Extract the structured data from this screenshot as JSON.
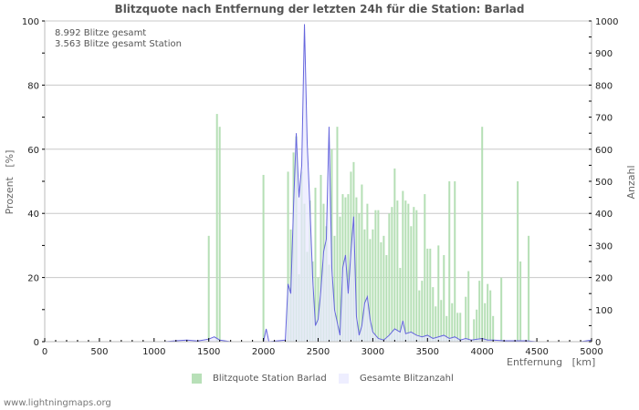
{
  "header": {
    "title": "Blitzquote nach Entfernung der letzten 24h für die Station: Barlad"
  },
  "info": {
    "line1": "8.992 Blitze gesamt",
    "line2": "3.563 Blitze gesamt Station"
  },
  "legend": {
    "items": [
      {
        "label": "Blitzquote Station Barlad",
        "color": "#b8e0b8"
      },
      {
        "label": "Gesamte Blitzanzahl",
        "color": "#eeeeff"
      }
    ]
  },
  "footer": {
    "text": "www.lightningmaps.org"
  },
  "colors": {
    "bar": "#b5dfb5",
    "line": "#6666dd",
    "line_fill": "#e8e8ff",
    "grid": "#c8c8c8",
    "axis": "#bbbbbb"
  },
  "chart_data": {
    "type": "bar",
    "title": "Blitzquote nach Entfernung der letzten 24h für die Station: Barlad",
    "xlabel": "Entfernung   [km]",
    "ylabel": "Prozent   [%]",
    "y2label": "Anzahl",
    "xlim": [
      0,
      5000
    ],
    "ylim": [
      0,
      100
    ],
    "y2lim": [
      0,
      1000
    ],
    "xticks": [
      0,
      500,
      1000,
      1500,
      2000,
      2500,
      3000,
      3500,
      4000,
      4500,
      5000
    ],
    "yticks": [
      0,
      20,
      40,
      60,
      80,
      100
    ],
    "y2ticks": [
      0,
      100,
      200,
      300,
      400,
      500,
      600,
      700,
      800,
      900,
      1000
    ],
    "grid": true,
    "legend_position": "bottom",
    "bin_width_km": 25,
    "series": [
      {
        "name": "Blitzquote Station Barlad",
        "axis": "left",
        "type": "bar",
        "x": [
          1500,
          1575,
          1600,
          2000,
          2225,
          2250,
          2275,
          2300,
          2325,
          2350,
          2375,
          2400,
          2425,
          2450,
          2475,
          2500,
          2525,
          2550,
          2575,
          2600,
          2625,
          2650,
          2675,
          2700,
          2725,
          2750,
          2775,
          2800,
          2825,
          2850,
          2875,
          2900,
          2925,
          2950,
          2975,
          3000,
          3025,
          3050,
          3075,
          3100,
          3125,
          3150,
          3175,
          3200,
          3225,
          3250,
          3275,
          3300,
          3325,
          3350,
          3375,
          3400,
          3425,
          3450,
          3475,
          3500,
          3525,
          3550,
          3575,
          3600,
          3625,
          3650,
          3675,
          3700,
          3725,
          3750,
          3775,
          3800,
          3850,
          3875,
          3925,
          3950,
          3975,
          4000,
          4025,
          4050,
          4075,
          4100,
          4175,
          4325,
          4350,
          4425
        ],
        "values": [
          33,
          71,
          67,
          52,
          53,
          35,
          59,
          64,
          21,
          53,
          43,
          28,
          44,
          25,
          48,
          20,
          52,
          43,
          36,
          24,
          60,
          33,
          67,
          39,
          46,
          45,
          46,
          53,
          56,
          45,
          40,
          49,
          35,
          43,
          32,
          35,
          41,
          41,
          31,
          33,
          27,
          40,
          42,
          54,
          44,
          23,
          47,
          44,
          43,
          36,
          42,
          41,
          16,
          19,
          46,
          29,
          29,
          17,
          11,
          30,
          13,
          27,
          8,
          50,
          12,
          50,
          9,
          9,
          14,
          22,
          7,
          10,
          19,
          67,
          12,
          18,
          16,
          8,
          20,
          50,
          25,
          33
        ]
      },
      {
        "name": "Gesamte Blitzanzahl",
        "axis": "right",
        "type": "line",
        "x": [
          0,
          1100,
          1200,
          1300,
          1400,
          1500,
          1550,
          1600,
          1700,
          2000,
          2025,
          2050,
          2200,
          2225,
          2250,
          2275,
          2300,
          2325,
          2350,
          2375,
          2400,
          2425,
          2450,
          2475,
          2500,
          2525,
          2550,
          2575,
          2600,
          2625,
          2650,
          2675,
          2700,
          2725,
          2750,
          2775,
          2800,
          2825,
          2850,
          2875,
          2900,
          2925,
          2950,
          2975,
          3000,
          3050,
          3100,
          3150,
          3200,
          3250,
          3275,
          3300,
          3350,
          3400,
          3450,
          3500,
          3550,
          3600,
          3650,
          3700,
          3750,
          3800,
          3850,
          3900,
          4000,
          4050,
          4100,
          4200,
          4300,
          4400,
          4500,
          4900,
          5000
        ],
        "values": [
          0,
          0,
          3,
          5,
          2,
          8,
          15,
          5,
          0,
          0,
          40,
          0,
          5,
          180,
          150,
          420,
          650,
          450,
          550,
          990,
          620,
          420,
          200,
          50,
          70,
          160,
          280,
          320,
          670,
          230,
          100,
          60,
          20,
          230,
          270,
          150,
          280,
          390,
          80,
          20,
          50,
          120,
          140,
          70,
          30,
          10,
          5,
          20,
          40,
          30,
          65,
          25,
          30,
          20,
          15,
          20,
          10,
          15,
          20,
          10,
          15,
          5,
          10,
          5,
          10,
          5,
          5,
          3,
          3,
          3,
          0,
          0,
          5
        ]
      }
    ]
  }
}
